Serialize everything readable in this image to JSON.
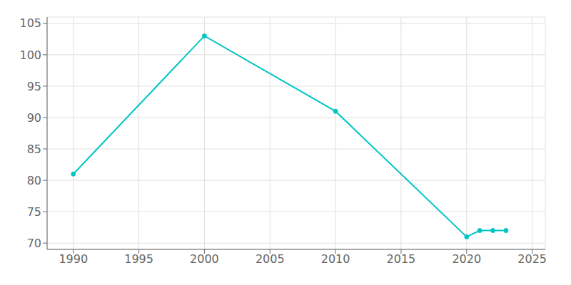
{
  "chart_data": {
    "type": "line",
    "x": [
      1990,
      2000,
      2010,
      2020,
      2021,
      2022,
      2023
    ],
    "values": [
      81,
      103,
      91,
      71,
      72,
      72,
      72
    ],
    "color": "#00C5C5",
    "marker": "o",
    "xlim": [
      1988,
      2026
    ],
    "ylim": [
      69,
      106
    ],
    "xticks": [
      1990,
      1995,
      2000,
      2005,
      2010,
      2015,
      2020,
      2025
    ],
    "yticks": [
      70,
      75,
      80,
      85,
      90,
      95,
      100,
      105
    ],
    "grid": true
  }
}
